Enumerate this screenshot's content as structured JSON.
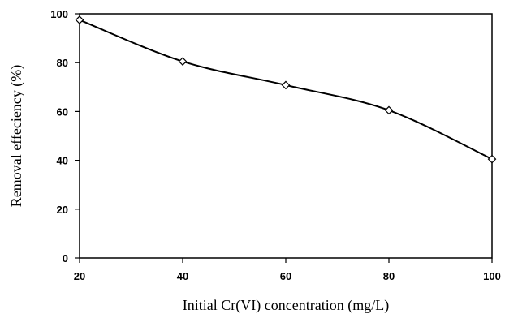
{
  "chart_data": {
    "type": "line",
    "title": "",
    "xlabel": "Initial Cr(VI) concentration (mg/L)",
    "ylabel": "Removal effeciency (%)",
    "x": [
      20,
      40,
      60,
      80,
      100
    ],
    "series": [
      {
        "values": [
          97.5,
          80.5,
          70.8,
          60.5,
          40.5
        ]
      }
    ],
    "xlim": [
      20,
      100
    ],
    "ylim": [
      0,
      100
    ],
    "xticks": [
      "20",
      "40",
      "60",
      "80",
      "100"
    ],
    "yticks": [
      "0",
      "20",
      "40",
      "60",
      "80",
      "100"
    ],
    "marker": "diamond-open",
    "smooth": true,
    "grid": false,
    "legend": "none",
    "colors": {
      "line": "#000000",
      "marker_fill": "#ffffff",
      "axis": "#000000"
    }
  }
}
